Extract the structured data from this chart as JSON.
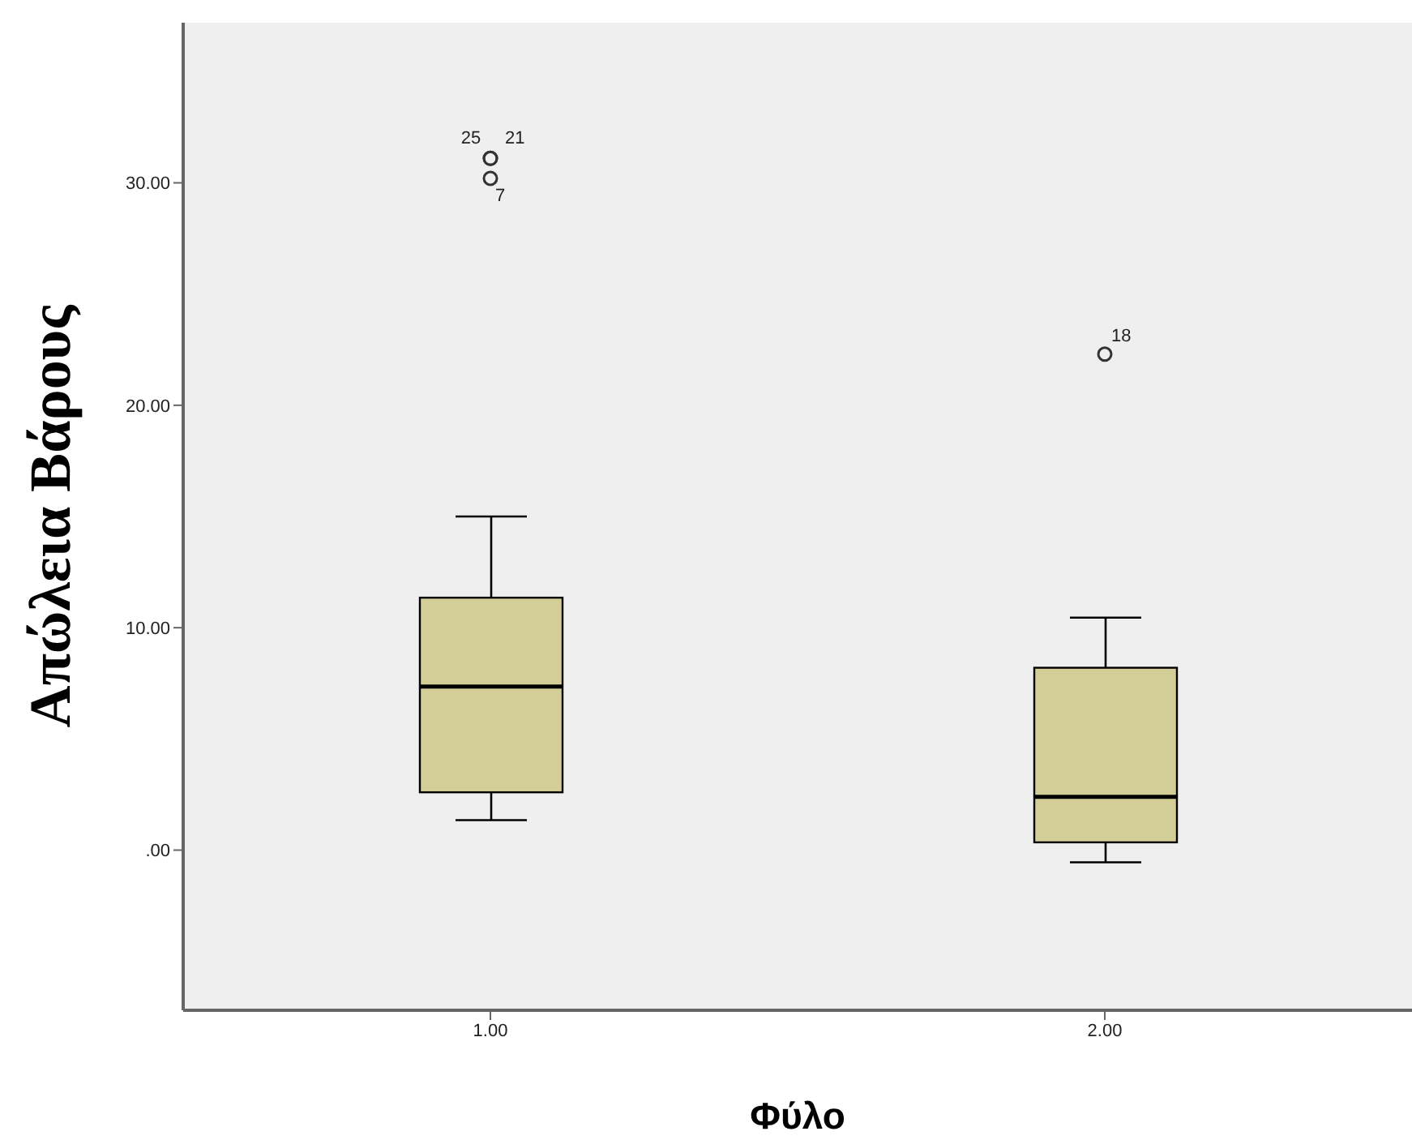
{
  "chart_data": {
    "type": "box",
    "xlabel": "Φύλο",
    "ylabel": "Απώλεια Βάρους",
    "categories": [
      "1.00",
      "2.00"
    ],
    "color": "#d3cd97",
    "boxes": [
      {
        "low": 1.35,
        "q1": 2.6,
        "median": 7.35,
        "q3": 11.35,
        "high": 15.0,
        "outliers": [
          31.1,
          31.1,
          30.2
        ]
      },
      {
        "low": -0.55,
        "q1": 0.35,
        "median": 2.4,
        "q3": 8.2,
        "high": 10.45,
        "outliers": [
          22.3
        ]
      }
    ],
    "ylim": [
      -7.2,
      37.2
    ],
    "yticks": [
      {
        "value": 0,
        "label": ".00"
      },
      {
        "value": 10,
        "label": "10.00"
      },
      {
        "value": 20,
        "label": "20.00"
      },
      {
        "value": 30,
        "label": "30.00"
      }
    ],
    "annotations": [
      "25",
      "21",
      "7",
      "18"
    ]
  }
}
